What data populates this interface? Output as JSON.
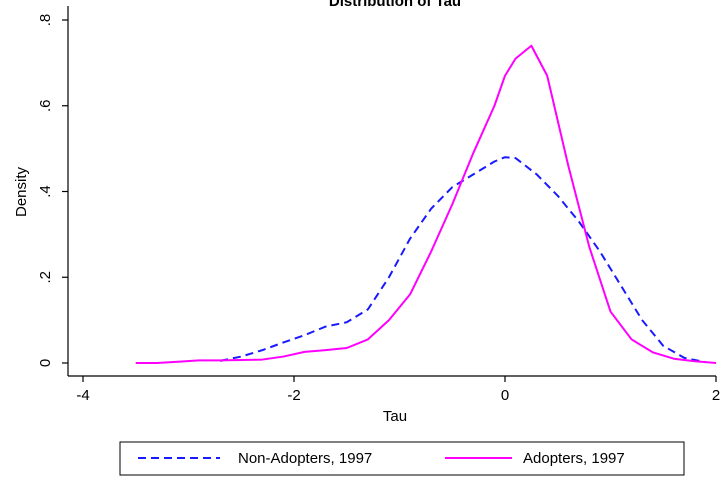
{
  "chart_data": {
    "type": "line",
    "title": "Distribution of Tau",
    "xlabel": "Tau",
    "ylabel": "Density",
    "xlim": [
      -4,
      2
    ],
    "ylim": [
      0,
      0.8
    ],
    "x_ticks": [
      {
        "value": -4,
        "label": "-4"
      },
      {
        "value": -2,
        "label": "-2"
      },
      {
        "value": 0,
        "label": "0"
      },
      {
        "value": 2,
        "label": "2"
      }
    ],
    "y_ticks": [
      {
        "value": 0,
        "label": "0"
      },
      {
        "value": 0.2,
        "label": ".2"
      },
      {
        "value": 0.4,
        "label": ".4"
      },
      {
        "value": 0.6,
        "label": ".6"
      },
      {
        "value": 0.8,
        "label": ".8"
      }
    ],
    "grid": false,
    "legend_position": "bottom",
    "series": [
      {
        "name": "Non-Adopters, 1997",
        "color": "#1a1aff",
        "line_style": "dashed",
        "x": [
          -2.7,
          -2.5,
          -2.3,
          -2.1,
          -1.9,
          -1.7,
          -1.5,
          -1.3,
          -1.1,
          -0.9,
          -0.7,
          -0.5,
          -0.3,
          -0.1,
          0.0,
          0.1,
          0.3,
          0.5,
          0.7,
          0.9,
          1.1,
          1.3,
          1.5,
          1.7,
          1.9
        ],
        "y": [
          0.005,
          0.015,
          0.03,
          0.048,
          0.065,
          0.085,
          0.095,
          0.125,
          0.2,
          0.29,
          0.36,
          0.41,
          0.44,
          0.47,
          0.48,
          0.478,
          0.44,
          0.39,
          0.33,
          0.26,
          0.18,
          0.1,
          0.04,
          0.012,
          0.002
        ]
      },
      {
        "name": "Adopters, 1997",
        "color": "#ff00ff",
        "line_style": "solid",
        "x": [
          -3.5,
          -3.3,
          -3.1,
          -2.9,
          -2.7,
          -2.5,
          -2.3,
          -2.1,
          -1.9,
          -1.7,
          -1.5,
          -1.3,
          -1.1,
          -0.9,
          -0.7,
          -0.5,
          -0.3,
          -0.1,
          0.0,
          0.1,
          0.2,
          0.25,
          0.4,
          0.6,
          0.8,
          1.0,
          1.2,
          1.4,
          1.6,
          1.8,
          2.0
        ],
        "y": [
          0.0,
          0.0,
          0.003,
          0.006,
          0.006,
          0.007,
          0.008,
          0.015,
          0.026,
          0.03,
          0.035,
          0.055,
          0.1,
          0.16,
          0.26,
          0.37,
          0.49,
          0.6,
          0.67,
          0.71,
          0.73,
          0.74,
          0.67,
          0.46,
          0.27,
          0.12,
          0.055,
          0.025,
          0.01,
          0.004,
          0.0
        ]
      }
    ]
  }
}
